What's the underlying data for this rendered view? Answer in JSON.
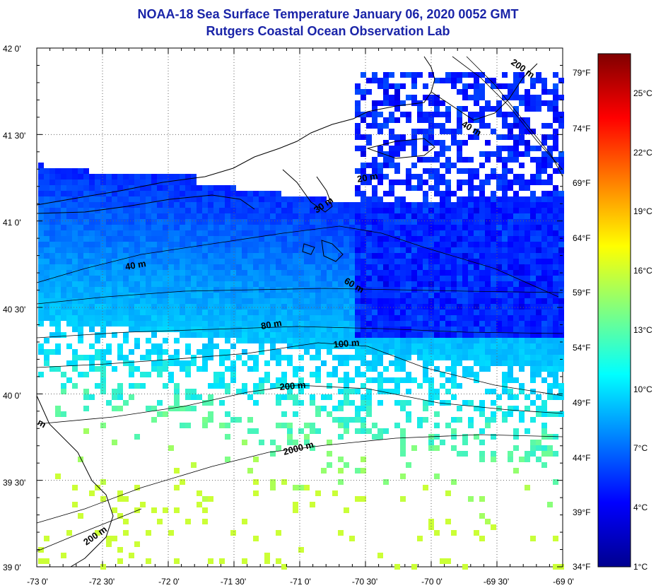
{
  "title_line1": "NOAA-18 Sea Surface Temperature January 06, 2020 0052 GMT",
  "title_line2": "Rutgers Coastal Ocean Observation Lab",
  "lat_labels": [
    "42 0'",
    "41 30'",
    "41 0'",
    "40 30'",
    "40 0'",
    "39 30'",
    "39 0'"
  ],
  "lon_labels": [
    "-73 0'",
    "-72 30'",
    "-72 0'",
    "-71 30'",
    "-71 0'",
    "-70 30'",
    "-70 0'",
    "-69 30'",
    "-69 0'"
  ],
  "fahrenheit_labels": [
    "79°F",
    "74°F",
    "69°F",
    "64°F",
    "59°F",
    "54°F",
    "49°F",
    "44°F",
    "39°F",
    "34°F"
  ],
  "celsius_labels": [
    "25°C",
    "22°C",
    "19°C",
    "16°C",
    "13°C",
    "10°C",
    "7°C",
    "4°C",
    "1°C"
  ],
  "colorbar_colors": [
    "#00008f",
    "#0000ff",
    "#0080ff",
    "#00ffff",
    "#80ff80",
    "#ffff00",
    "#ff8000",
    "#ff0000",
    "#800000"
  ],
  "depth_labels": [
    "200 m",
    "40 m",
    "20 m",
    "30 m",
    "40 m",
    "60 m",
    "80 m",
    "100 m",
    "200 m",
    "2000 m",
    "200 m",
    "m"
  ]
}
